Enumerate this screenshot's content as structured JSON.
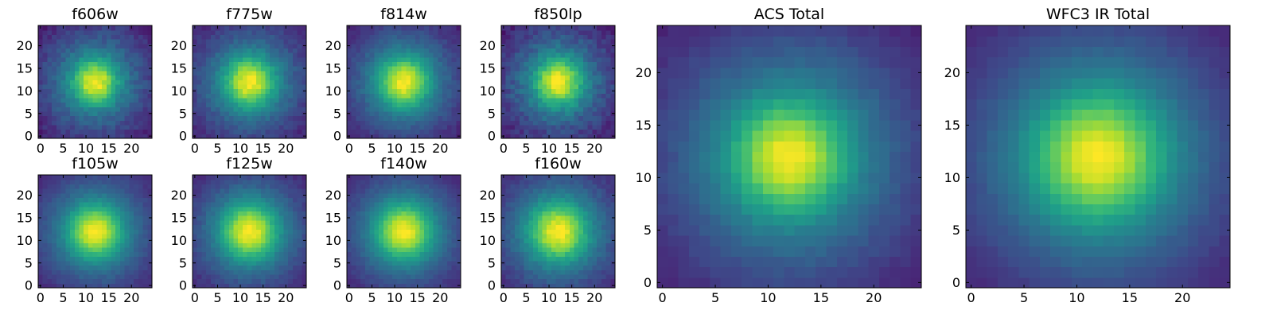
{
  "chart_data": [
    {
      "type": "heatmap",
      "title": "f606w",
      "xlim": [
        0,
        24
      ],
      "ylim": [
        0,
        24
      ],
      "xticks": [
        0,
        5,
        10,
        15,
        20
      ],
      "yticks": [
        0,
        5,
        10,
        15,
        20
      ],
      "center": [
        12,
        12
      ],
      "colormap": "viridis",
      "peak_width": 3.2,
      "halo_width": 9.0,
      "halo_weight": 0.5,
      "noise": 0.1,
      "grid": false
    },
    {
      "type": "heatmap",
      "title": "f775w",
      "xlim": [
        0,
        24
      ],
      "ylim": [
        0,
        24
      ],
      "xticks": [
        0,
        5,
        10,
        15,
        20
      ],
      "yticks": [
        0,
        5,
        10,
        15,
        20
      ],
      "center": [
        12,
        12
      ],
      "colormap": "viridis",
      "peak_width": 3.6,
      "halo_width": 9.5,
      "halo_weight": 0.5,
      "noise": 0.08,
      "grid": false
    },
    {
      "type": "heatmap",
      "title": "f814w",
      "xlim": [
        0,
        24
      ],
      "ylim": [
        0,
        24
      ],
      "xticks": [
        0,
        5,
        10,
        15,
        20
      ],
      "yticks": [
        0,
        5,
        10,
        15,
        20
      ],
      "center": [
        12,
        12
      ],
      "colormap": "viridis",
      "peak_width": 3.6,
      "halo_width": 9.5,
      "halo_weight": 0.5,
      "noise": 0.07,
      "grid": false
    },
    {
      "type": "heatmap",
      "title": "f850lp",
      "xlim": [
        0,
        24
      ],
      "ylim": [
        0,
        24
      ],
      "xticks": [
        0,
        5,
        10,
        15,
        20
      ],
      "yticks": [
        0,
        5,
        10,
        15,
        20
      ],
      "center": [
        12,
        12
      ],
      "colormap": "viridis",
      "peak_width": 3.4,
      "halo_width": 9.0,
      "halo_weight": 0.5,
      "noise": 0.12,
      "grid": false
    },
    {
      "type": "heatmap",
      "title": "f105w",
      "xlim": [
        0,
        24
      ],
      "ylim": [
        0,
        24
      ],
      "xticks": [
        0,
        5,
        10,
        15,
        20
      ],
      "yticks": [
        0,
        5,
        10,
        15,
        20
      ],
      "center": [
        12,
        12
      ],
      "colormap": "viridis",
      "peak_width": 3.8,
      "halo_width": 10.0,
      "halo_weight": 0.5,
      "noise": 0.05,
      "grid": false
    },
    {
      "type": "heatmap",
      "title": "f125w",
      "xlim": [
        0,
        24
      ],
      "ylim": [
        0,
        24
      ],
      "xticks": [
        0,
        5,
        10,
        15,
        20
      ],
      "yticks": [
        0,
        5,
        10,
        15,
        20
      ],
      "center": [
        12,
        12
      ],
      "colormap": "viridis",
      "peak_width": 4.0,
      "halo_width": 10.0,
      "halo_weight": 0.5,
      "noise": 0.06,
      "grid": false
    },
    {
      "type": "heatmap",
      "title": "f140w",
      "xlim": [
        0,
        24
      ],
      "ylim": [
        0,
        24
      ],
      "xticks": [
        0,
        5,
        10,
        15,
        20
      ],
      "yticks": [
        0,
        5,
        10,
        15,
        20
      ],
      "center": [
        12,
        12
      ],
      "colormap": "viridis",
      "peak_width": 4.0,
      "halo_width": 10.0,
      "halo_weight": 0.5,
      "noise": 0.05,
      "grid": false
    },
    {
      "type": "heatmap",
      "title": "f160w",
      "xlim": [
        0,
        24
      ],
      "ylim": [
        0,
        24
      ],
      "xticks": [
        0,
        5,
        10,
        15,
        20
      ],
      "yticks": [
        0,
        5,
        10,
        15,
        20
      ],
      "center": [
        12,
        12
      ],
      "colormap": "viridis",
      "peak_width": 4.2,
      "halo_width": 10.5,
      "halo_weight": 0.5,
      "noise": 0.07,
      "grid": false
    },
    {
      "type": "heatmap",
      "title": "ACS Total",
      "xlim": [
        0,
        24
      ],
      "ylim": [
        0,
        24
      ],
      "xticks": [
        0,
        5,
        10,
        15,
        20
      ],
      "yticks": [
        0,
        5,
        10,
        15,
        20
      ],
      "center": [
        12,
        12
      ],
      "colormap": "viridis",
      "peak_width": 3.5,
      "halo_width": 9.5,
      "halo_weight": 0.5,
      "noise": 0.04,
      "grid": false
    },
    {
      "type": "heatmap",
      "title": "WFC3 IR Total",
      "xlim": [
        0,
        24
      ],
      "ylim": [
        0,
        24
      ],
      "xticks": [
        0,
        5,
        10,
        15,
        20
      ],
      "yticks": [
        0,
        5,
        10,
        15,
        20
      ],
      "center": [
        12,
        12
      ],
      "colormap": "viridis",
      "peak_width": 4.0,
      "halo_width": 10.0,
      "halo_weight": 0.5,
      "noise": 0.03,
      "grid": false
    }
  ],
  "colors": {
    "viridis_stops": [
      "#440154",
      "#482878",
      "#3e4989",
      "#31688e",
      "#26828e",
      "#1f9e89",
      "#35b779",
      "#6ece58",
      "#b5de2b",
      "#fde725"
    ]
  }
}
